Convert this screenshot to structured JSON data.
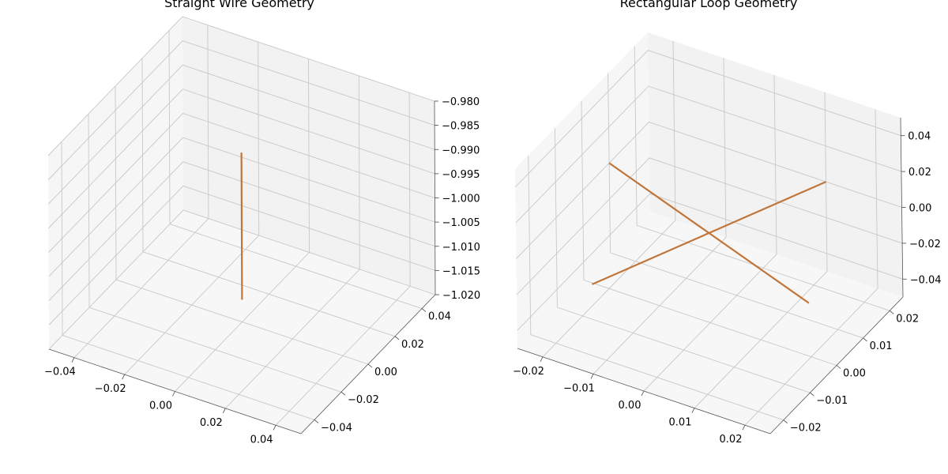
{
  "chart_data": [
    {
      "type": "line3d",
      "title": "Straight Wire Geometry",
      "color": "#c0753a",
      "xlim": [
        -0.05,
        0.05
      ],
      "ylim": [
        -0.05,
        0.05
      ],
      "zlim": [
        -1.02,
        -0.98
      ],
      "x_ticks": [
        "−0.04",
        "−0.02",
        "0.00",
        "0.02",
        "0.04"
      ],
      "y_ticks": [
        "−0.04",
        "−0.02",
        "0.00",
        "0.02",
        "0.04"
      ],
      "z_ticks": [
        "−0.980",
        "−0.985",
        "−0.990",
        "−0.995",
        "−1.000",
        "−1.005",
        "−1.010",
        "−1.015",
        "−1.020"
      ],
      "segments": [
        {
          "from": [
            0,
            0,
            -0.985
          ],
          "to": [
            0,
            0,
            -1.0154
          ]
        }
      ]
    },
    {
      "type": "line3d",
      "title": "Rectangular Loop Geometry",
      "color": "#c0753a",
      "xlim": [
        -0.025,
        0.025
      ],
      "ylim": [
        -0.025,
        0.025
      ],
      "zlim": [
        -0.05,
        0.05
      ],
      "x_ticks": [
        "−0.02",
        "−0.01",
        "0.00",
        "0.01",
        "0.02"
      ],
      "y_ticks": [
        "−0.02",
        "−0.01",
        "0.00",
        "0.01",
        "0.02"
      ],
      "z_ticks": [
        "−0.04",
        "−0.02",
        "0.00",
        "0.02",
        "0.04"
      ],
      "segments": [
        {
          "from": [
            -0.025,
            0.01,
            0
          ],
          "to": [
            0.025,
            -0.01,
            0
          ]
        },
        {
          "from": [
            -0.01,
            -0.025,
            0
          ],
          "to": [
            0.01,
            0.025,
            0
          ]
        }
      ]
    }
  ]
}
